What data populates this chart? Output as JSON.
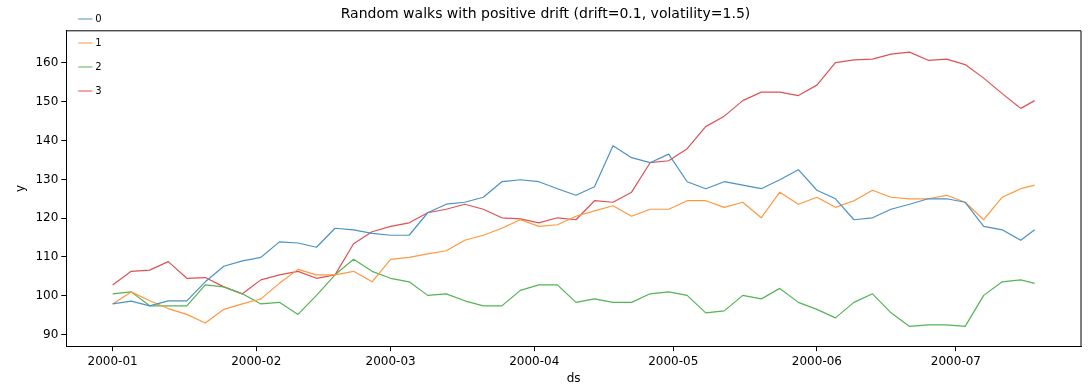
{
  "chart_data": {
    "type": "line",
    "title": "Random walks with positive drift (drift=0.1, volatility=1.5)",
    "xlabel": "ds",
    "ylabel": "y",
    "x": [
      "2000-01-01",
      "2000-01-05",
      "2000-01-09",
      "2000-01-13",
      "2000-01-17",
      "2000-01-21",
      "2000-01-25",
      "2000-01-29",
      "2000-02-02",
      "2000-02-06",
      "2000-02-10",
      "2000-02-14",
      "2000-02-18",
      "2000-02-22",
      "2000-02-26",
      "2000-03-01",
      "2000-03-05",
      "2000-03-09",
      "2000-03-13",
      "2000-03-17",
      "2000-03-21",
      "2000-03-25",
      "2000-03-29",
      "2000-04-02",
      "2000-04-06",
      "2000-04-10",
      "2000-04-14",
      "2000-04-18",
      "2000-04-22",
      "2000-04-26",
      "2000-04-30",
      "2000-05-04",
      "2000-05-08",
      "2000-05-12",
      "2000-05-16",
      "2000-05-20",
      "2000-05-24",
      "2000-05-28",
      "2000-06-01",
      "2000-06-05",
      "2000-06-09",
      "2000-06-13",
      "2000-06-17",
      "2000-06-21",
      "2000-06-25",
      "2000-06-29",
      "2000-07-03",
      "2000-07-07",
      "2000-07-11",
      "2000-07-15",
      "2000-07-18"
    ],
    "series": [
      {
        "name": "0",
        "color": "#4c92c3",
        "values": [
          97.9,
          98.6,
          97.4,
          98.7,
          98.7,
          103.6,
          107.6,
          109.0,
          109.9,
          113.9,
          113.6,
          112.5,
          117.4,
          117.0,
          116.1,
          115.6,
          115.6,
          121.4,
          123.6,
          124.1,
          125.4,
          129.4,
          129.9,
          129.4,
          127.6,
          125.9,
          128.1,
          138.7,
          135.6,
          134.3,
          136.5,
          129.4,
          127.6,
          129.4,
          128.5,
          127.6,
          129.9,
          132.5,
          127.2,
          125.0,
          119.6,
          120.1,
          122.3,
          123.6,
          125.0,
          125.0,
          124.1,
          117.9,
          117.0,
          114.3,
          117.0
        ]
      },
      {
        "name": "1",
        "color": "#ff983e",
        "values": [
          97.9,
          101.0,
          98.7,
          96.7,
          95.2,
          93.0,
          96.5,
          97.9,
          99.2,
          103.2,
          106.8,
          105.4,
          105.4,
          106.3,
          103.6,
          109.4,
          109.9,
          110.8,
          111.6,
          114.3,
          115.6,
          117.4,
          119.6,
          117.9,
          118.3,
          120.5,
          121.9,
          123.2,
          120.5,
          122.3,
          122.3,
          124.5,
          124.5,
          122.8,
          124.1,
          120.1,
          126.7,
          123.6,
          125.4,
          122.8,
          124.5,
          127.2,
          125.4,
          125.0,
          125.0,
          125.9,
          124.1,
          119.6,
          125.4,
          127.6,
          128.5
        ]
      },
      {
        "name": "2",
        "color": "#56b356",
        "values": [
          100.5,
          101.0,
          97.4,
          97.4,
          97.4,
          102.8,
          102.3,
          100.5,
          97.9,
          98.3,
          95.2,
          100.1,
          105.4,
          109.4,
          106.3,
          104.5,
          103.6,
          100.1,
          100.5,
          98.7,
          97.4,
          97.4,
          101.4,
          102.8,
          102.8,
          98.3,
          99.2,
          98.3,
          98.3,
          100.5,
          101.0,
          100.1,
          95.6,
          96.1,
          100.1,
          99.2,
          101.9,
          98.3,
          96.5,
          94.3,
          98.3,
          100.5,
          95.6,
          92.1,
          92.5,
          92.5,
          92.1,
          100.1,
          103.6,
          104.1,
          103.2
        ]
      },
      {
        "name": "3",
        "color": "#de5253",
        "values": [
          102.8,
          106.3,
          106.6,
          108.8,
          104.5,
          104.7,
          102.3,
          100.5,
          104.1,
          105.4,
          106.3,
          104.5,
          105.4,
          113.4,
          116.5,
          117.9,
          118.8,
          121.4,
          122.3,
          123.6,
          122.3,
          120.1,
          119.8,
          118.8,
          120.1,
          119.6,
          124.5,
          124.1,
          126.7,
          134.3,
          134.8,
          137.9,
          143.6,
          146.3,
          150.3,
          152.5,
          152.5,
          151.6,
          154.3,
          160.1,
          160.8,
          161.0,
          162.3,
          162.8,
          160.7,
          161.0,
          159.6,
          156.1,
          152.1,
          148.3,
          150.3
        ]
      }
    ],
    "xlim": [
      "1999-12-22",
      "2000-07-28"
    ],
    "xticks": [
      "2000-01",
      "2000-02",
      "2000-03",
      "2000-04",
      "2000-05",
      "2000-06",
      "2000-07"
    ],
    "ylim": [
      87,
      168.3
    ],
    "yticks": [
      90,
      100,
      110,
      120,
      130,
      140,
      150,
      160
    ],
    "grid": false,
    "legend": "top left",
    "marker": "none",
    "line_style": "solid"
  }
}
